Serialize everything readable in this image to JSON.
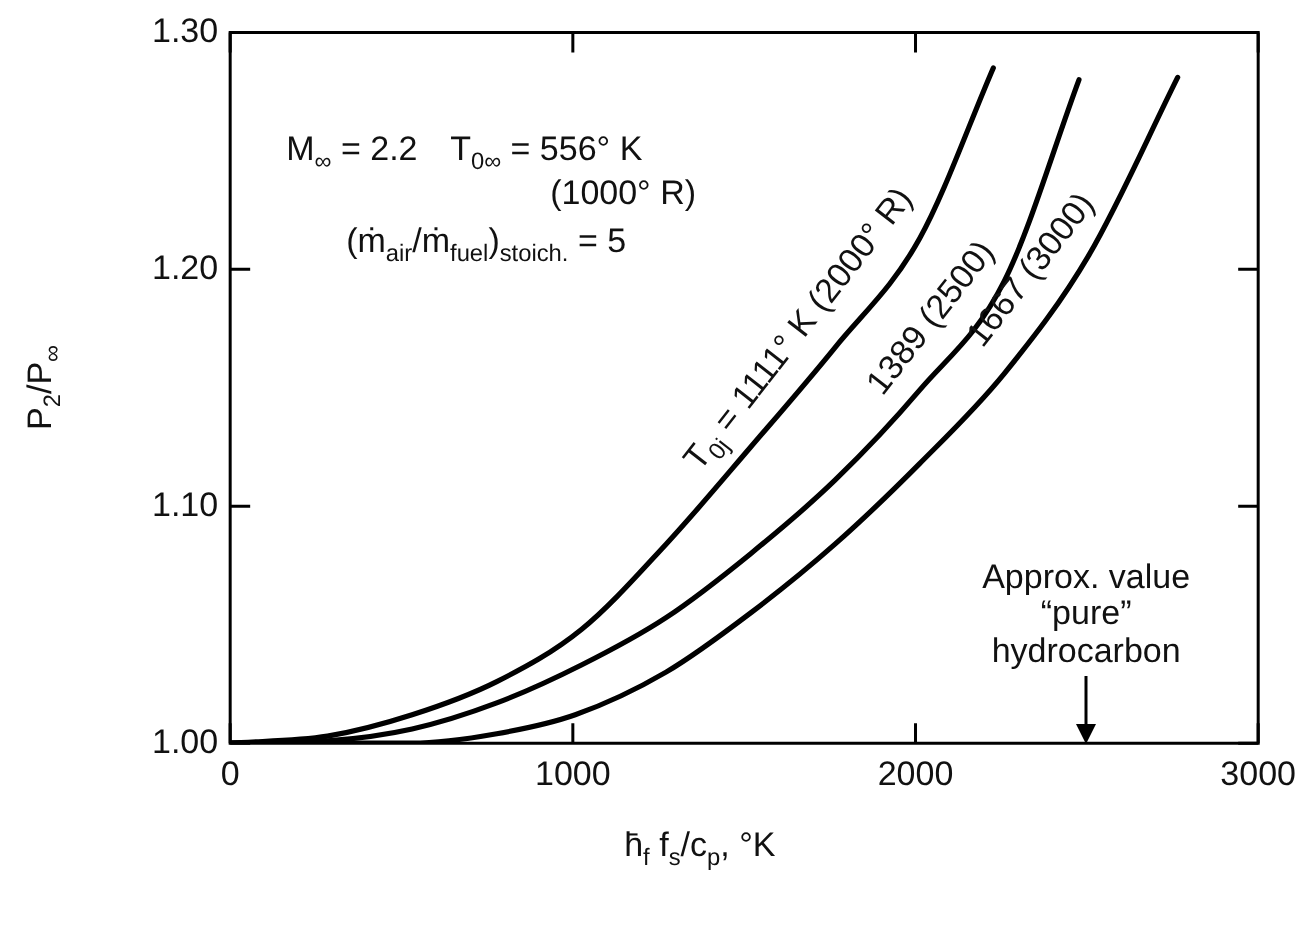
{
  "chart_data": {
    "type": "line",
    "xlabel": "h̄$_{f}$ f$_{s}$/c$_{p}$, °K",
    "ylabel": "P$_{2}$/P$_{∞}$",
    "xlim": [
      0,
      3000
    ],
    "xticks": [
      0,
      1000,
      2000,
      3000
    ],
    "ylim": [
      1.0,
      1.3
    ],
    "yticks": [
      {
        "value": 1.0,
        "label": "1.00"
      },
      {
        "value": 1.1,
        "label": "1.10"
      },
      {
        "value": 1.2,
        "label": "1.20"
      },
      {
        "value": 1.3,
        "label": "1.30"
      }
    ],
    "grid": false,
    "legend": false,
    "marker": "none",
    "line_style": "solid",
    "series": [
      {
        "color": "#000000",
        "x": [
          0,
          284,
          531,
          778,
          1025,
          1272,
          1519,
          1765,
          2012,
          2227
        ],
        "values": [
          1.0,
          1.003,
          1.012,
          1.026,
          1.048,
          1.084,
          1.125,
          1.167,
          1.213,
          1.285
        ]
      },
      {
        "color": "#000000",
        "x": [
          0,
          284,
          531,
          778,
          1025,
          1272,
          1519,
          1765,
          2012,
          2259,
          2477
        ],
        "values": [
          1.0,
          1.001,
          1.006,
          1.017,
          1.033,
          1.053,
          1.08,
          1.111,
          1.149,
          1.195,
          1.28
        ]
      },
      {
        "color": "#000000",
        "x": [
          0,
          531,
          778,
          1007,
          1272,
          1519,
          1765,
          2012,
          2259,
          2506,
          2765
        ],
        "values": [
          1.0,
          1.0,
          1.004,
          1.012,
          1.03,
          1.055,
          1.084,
          1.118,
          1.156,
          1.206,
          1.281
        ]
      }
    ],
    "annotations": [
      "M$_{∞}$ = 2.2",
      "T$_{0∞}$ = 556° K",
      "(1000° R)",
      "(ṁ$_{air}$/ṁ$_{fuel}$)$_{stoich.}$ = 5",
      {
        "text": "T$_{0j}$ = 1111° K  (2000° R)",
        "x": 1750,
        "y": 1.165
      },
      {
        "text": "1389   (2500)",
        "x": 2130,
        "y": 1.17
      },
      {
        "text": "1667   (3000)",
        "x": 2420,
        "y": 1.19
      },
      "Approx. value “pure” hydrocarbon"
    ]
  }
}
